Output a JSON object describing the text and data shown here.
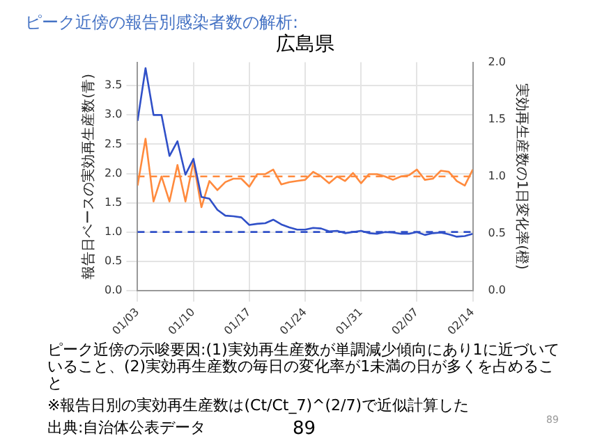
{
  "chart_data": {
    "type": "line",
    "title": "広島県",
    "subtitle": "ピーク近傍の報告別感染者数の解析:",
    "ylabel": "報告日ベースの実効再生産数(青)",
    "y2label": "実効再生産数の1日変化率(橙)",
    "x": [
      "--01-03",
      "--01-04",
      "--01-05",
      "--01-06",
      "--01-07",
      "--01-08",
      "--01-09",
      "--01-10",
      "--01-11",
      "--01-12",
      "--01-13",
      "--01-14",
      "--01-15",
      "--01-16",
      "--01-17",
      "--01-18",
      "--01-19",
      "--01-20",
      "--01-21",
      "--01-22",
      "--01-23",
      "--01-24",
      "--01-25",
      "--01-26",
      "--01-27",
      "--01-28",
      "--01-29",
      "--01-30",
      "--01-31",
      "--02-01",
      "--02-02",
      "--02-03",
      "--02-04",
      "--02-05",
      "--02-06",
      "--02-07",
      "--02-08",
      "--02-09",
      "--02-10",
      "--02-11",
      "--02-12",
      "--02-13",
      "--02-14"
    ],
    "series": [
      {
        "color": "#3050c8",
        "values": [
          2.9,
          3.8,
          3.0,
          3.0,
          2.3,
          2.55,
          1.98,
          2.25,
          1.6,
          1.57,
          1.38,
          1.28,
          1.27,
          1.25,
          1.12,
          1.14,
          1.15,
          1.21,
          1.13,
          1.08,
          1.04,
          1.04,
          1.07,
          1.06,
          1.01,
          1.02,
          0.98,
          1.0,
          1.02,
          0.98,
          0.97,
          1.0,
          0.99,
          0.97,
          0.97,
          1.0,
          0.95,
          0.98,
          0.99,
          0.96,
          0.92,
          0.93,
          0.97
        ]
      },
      {
        "color": "#ff8a3d",
        "axis": "y2",
        "values": [
          0.92,
          1.33,
          0.78,
          1.0,
          0.78,
          1.1,
          0.78,
          1.13,
          0.73,
          0.96,
          0.88,
          0.95,
          0.98,
          0.98,
          0.91,
          1.02,
          1.02,
          1.06,
          0.93,
          0.95,
          0.96,
          0.97,
          1.04,
          1.0,
          0.94,
          1.0,
          0.96,
          1.03,
          0.94,
          1.02,
          1.02,
          1.0,
          0.97,
          1.0,
          1.01,
          1.06,
          0.97,
          0.98,
          1.05,
          1.04,
          0.96,
          0.92,
          1.06
        ]
      }
    ],
    "xlim": [
      "--01-03",
      "--02-14"
    ],
    "xticks": [
      {
        "value": "--01-03",
        "label": "01/03"
      },
      {
        "value": "--01-10",
        "label": "01/10"
      },
      {
        "value": "--01-17",
        "label": "01/17"
      },
      {
        "value": "--01-24",
        "label": "01/24"
      },
      {
        "value": "--01-31",
        "label": "01/31"
      },
      {
        "value": "--02-07",
        "label": "02/07"
      },
      {
        "value": "--02-14",
        "label": "02/14"
      }
    ],
    "ylim": [
      0,
      3.9
    ],
    "yticks": [
      {
        "value": 0,
        "label": "0.0"
      },
      {
        "value": 0.5,
        "label": "0.5"
      },
      {
        "value": 1,
        "label": "1.0"
      },
      {
        "value": 1.5,
        "label": "1.5"
      },
      {
        "value": 2,
        "label": "2.0"
      },
      {
        "value": 2.5,
        "label": "2.5"
      },
      {
        "value": 3,
        "label": "3.0"
      },
      {
        "value": 3.5,
        "label": "3.5"
      }
    ],
    "y2lim": [
      0,
      2
    ],
    "y2ticks": [
      {
        "value": 0,
        "label": "0.0"
      },
      {
        "value": 0.5,
        "label": "0.5"
      },
      {
        "value": 1,
        "label": "1.0"
      },
      {
        "value": 1.5,
        "label": "1.5"
      },
      {
        "value": 2,
        "label": "2.0"
      }
    ],
    "ref_lines": [
      {
        "axis": "y",
        "value": 1,
        "color": "#3050c8",
        "line_style": "dashed"
      },
      {
        "axis": "y2",
        "value": 1,
        "color": "#ff8a3d",
        "line_style": "dashed"
      }
    ],
    "grid": true,
    "legend": false,
    "marker": "none",
    "line_style": "solid",
    "annotations": [
      "ピーク近傍の示唆要因:(1)実効再生産数が単調減少傾向にあり1に近づいていること、(2)実効再生産数の毎日の変化率が1未満の日が多くを占めること",
      "※報告日別の実効再生産数は(Ct/Ct_7)^(2/7)で近似計算した",
      "出典:自治体公表データ",
      "89",
      "89"
    ]
  }
}
